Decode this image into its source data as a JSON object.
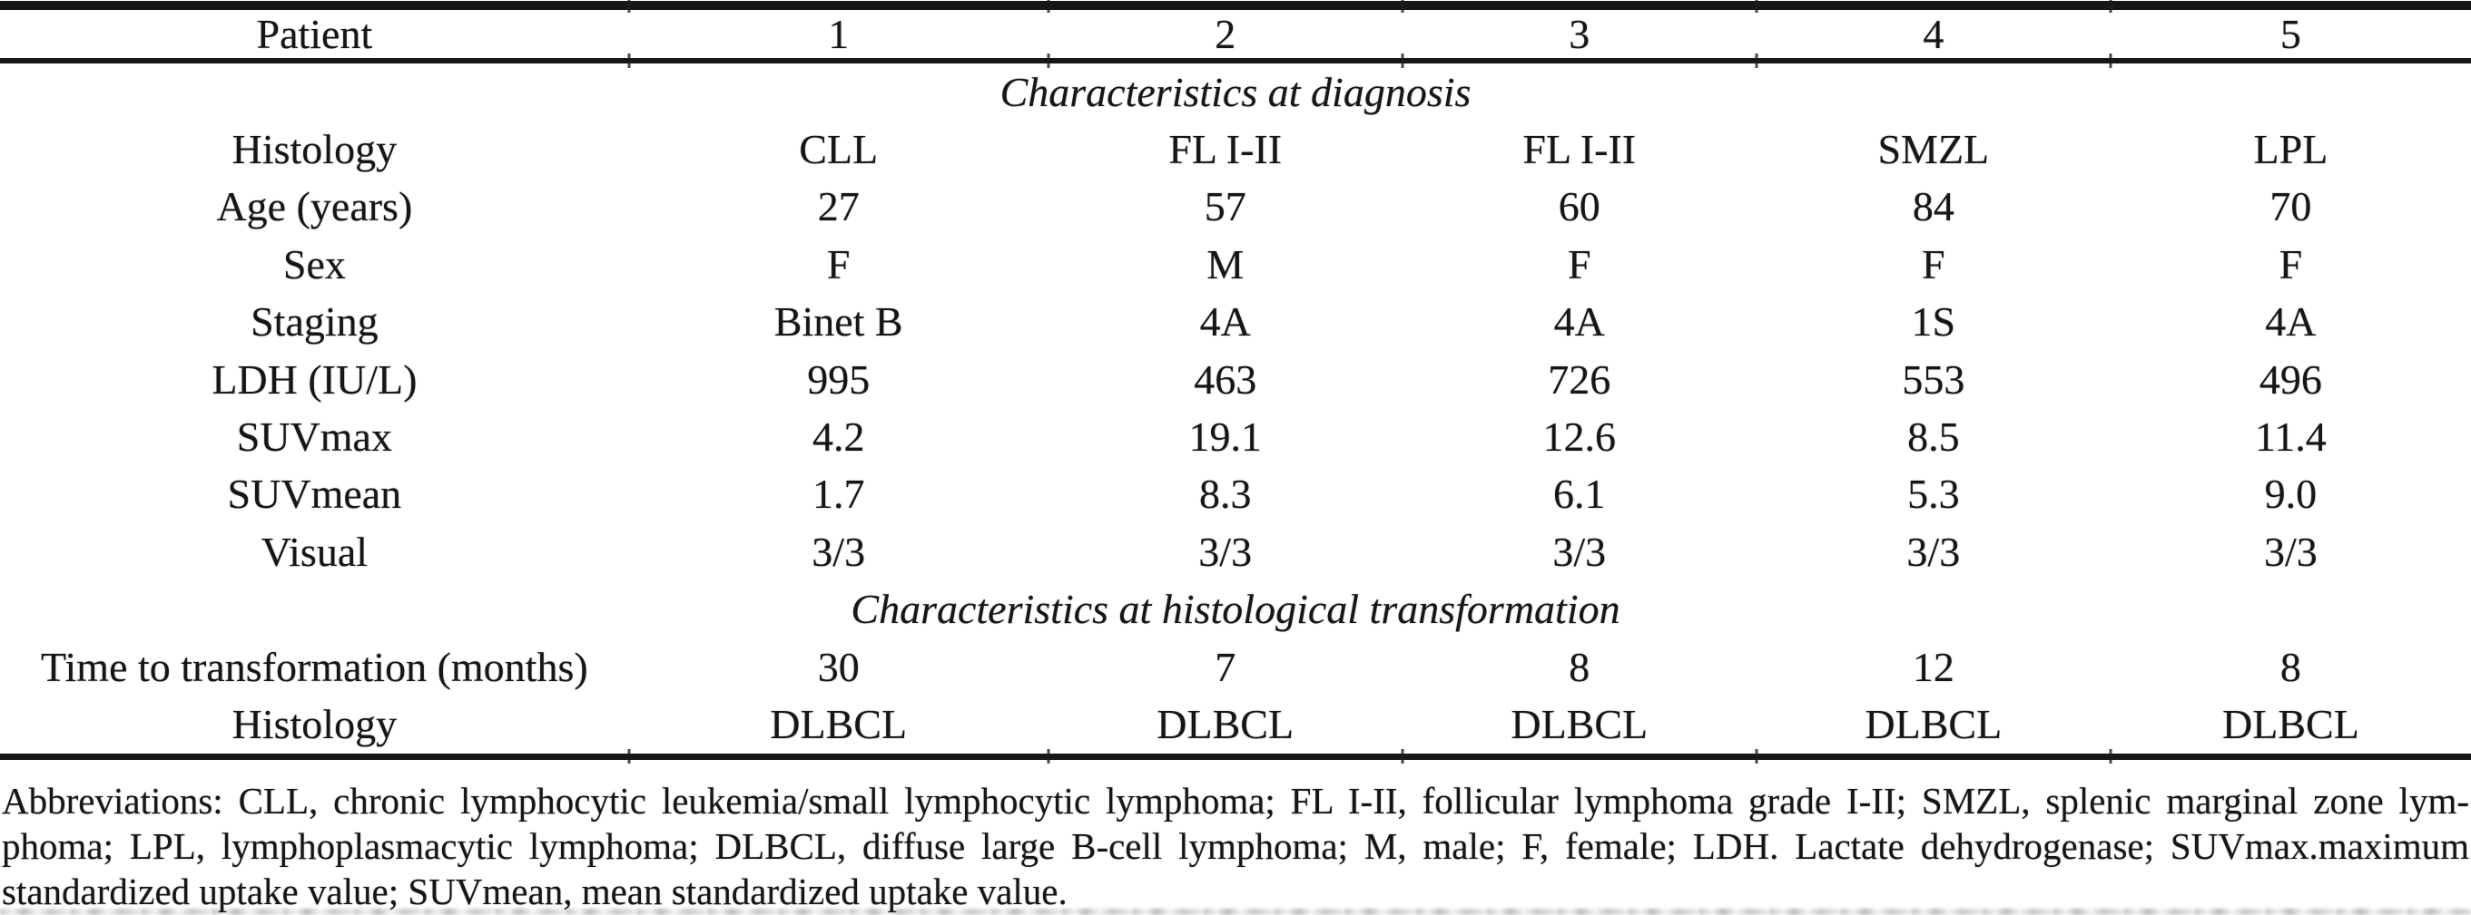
{
  "colors": {
    "background": "#ffffff",
    "text": "#161616",
    "rule": "#171717"
  },
  "table": {
    "header": {
      "label": "Patient",
      "columns": [
        "1",
        "2",
        "3",
        "4",
        "5"
      ]
    },
    "sections": [
      {
        "title": "Characteristics at diagnosis",
        "rows": [
          {
            "label": "Histology",
            "values": [
              "CLL",
              "FL I-II",
              "FL I-II",
              "SMZL",
              "LPL"
            ]
          },
          {
            "label": "Age (years)",
            "values": [
              "27",
              "57",
              "60",
              "84",
              "70"
            ]
          },
          {
            "label": "Sex",
            "values": [
              "F",
              "M",
              "F",
              "F",
              "F"
            ]
          },
          {
            "label": "Staging",
            "values": [
              "Binet B",
              "4A",
              "4A",
              "1S",
              "4A"
            ]
          },
          {
            "label": "LDH (IU/L)",
            "values": [
              "995",
              "463",
              "726",
              "553",
              "496"
            ]
          },
          {
            "label": "SUVmax",
            "values": [
              "4.2",
              "19.1",
              "12.6",
              "8.5",
              "11.4"
            ]
          },
          {
            "label": "SUVmean",
            "values": [
              "1.7",
              "8.3",
              "6.1",
              "5.3",
              "9.0"
            ]
          },
          {
            "label": "Visual",
            "values": [
              "3/3",
              "3/3",
              "3/3",
              "3/3",
              "3/3"
            ]
          }
        ]
      },
      {
        "title": "Characteristics at histological transformation",
        "rows": [
          {
            "label": "Time to transformation (months)",
            "values": [
              "30",
              "7",
              "8",
              "12",
              "8"
            ]
          },
          {
            "label": "Histology",
            "values": [
              "DLBCL",
              "DLBCL",
              "DLBCL",
              "DLBCL",
              "DLBCL"
            ]
          }
        ]
      }
    ]
  },
  "footnote": {
    "lines": [
      "Abbreviations: CLL, chronic lymphocytic leukemia/small lymphocytic lymphoma; FL I-II, follicular lymphoma grade I-II; SMZL, splenic marginal zone lym-",
      "phoma; LPL, lymphoplasmacytic lymphoma; DLBCL, diffuse large B-cell lymphoma; M, male; F, female; LDH. Lactate dehydrogenase; SUVmax.maximum",
      "standardized uptake value; SUVmean, mean standardized uptake value."
    ]
  }
}
